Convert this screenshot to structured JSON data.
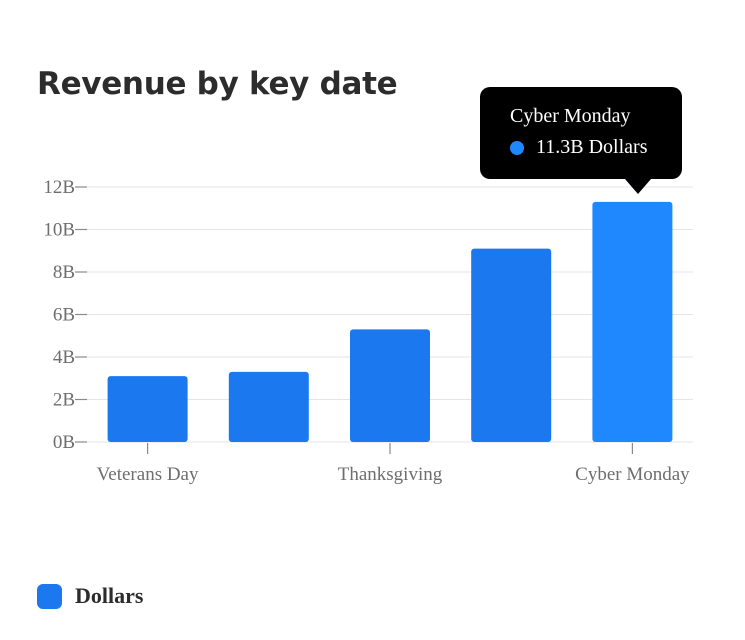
{
  "colors": {
    "bar": "#1b78ef",
    "bar_highlight": "#1f88ff",
    "grid": "#e3e4f0",
    "axis_text": "#6e6e6e"
  },
  "chart_data": {
    "type": "bar",
    "title": "Revenue by key date",
    "categories": [
      "Veterans Day",
      "",
      "Thanksgiving",
      "",
      "Cyber Monday"
    ],
    "series": [
      {
        "name": "Dollars",
        "values": [
          3.1,
          3.3,
          5.3,
          9.1,
          11.3
        ]
      }
    ],
    "value_unit": "B",
    "ylim": [
      0,
      12
    ],
    "yticks": [
      0,
      2,
      4,
      6,
      8,
      10,
      12
    ],
    "ytick_labels": [
      "0B",
      "2B",
      "4B",
      "6B",
      "8B",
      "10B",
      "12B"
    ],
    "xtick_labels": [
      "Veterans Day",
      "Thanksgiving",
      "Cyber Monday"
    ],
    "grid": true,
    "legend_position": "bottom-left",
    "highlighted_index": 4
  },
  "tooltip": {
    "title": "Cyber Monday",
    "value": "11.3B Dollars"
  },
  "legend": {
    "label": "Dollars"
  }
}
